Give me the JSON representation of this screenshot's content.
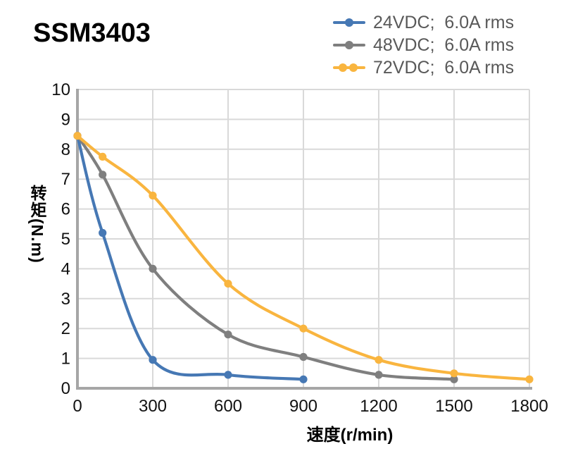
{
  "title": "SSM3403",
  "legend": {
    "items": [
      {
        "label": "24VDC;  6.0A rms",
        "color": "#4678B4",
        "dots": 1
      },
      {
        "label": "48VDC;  6.0A rms",
        "color": "#7F7F7F",
        "dots": 1
      },
      {
        "label": "72VDC;  6.0A rms",
        "color": "#F9B53F",
        "dots": 2
      }
    ]
  },
  "colors": {
    "blue_series": "#4678B4",
    "gray_series": "#7F7F7F",
    "yellow_series": "#F9B53F",
    "gridline": "#D9D9D9",
    "axis": "#A6A6A6",
    "legend_text": "#595959",
    "tick_text": "#111111",
    "title_text": "#000000"
  },
  "chart_data": {
    "type": "line",
    "title": "SSM3403",
    "xlabel": "速度(r/min)",
    "ylabel": "转矩(N.m)",
    "xlim": [
      0,
      1800
    ],
    "ylim": [
      0,
      10
    ],
    "xticks": [
      0,
      300,
      600,
      900,
      1200,
      1500,
      1800
    ],
    "yticks": [
      0,
      1,
      2,
      3,
      4,
      5,
      6,
      7,
      8,
      9,
      10
    ],
    "grid": true,
    "legend_position": "top-right",
    "series": [
      {
        "name": "24VDC;  6.0A rms",
        "color": "#4678B4",
        "points": [
          [
            0,
            8.45
          ],
          [
            100,
            5.2
          ],
          [
            300,
            0.95
          ],
          [
            600,
            0.45
          ],
          [
            900,
            0.3
          ]
        ]
      },
      {
        "name": "48VDC;  6.0A rms",
        "color": "#7F7F7F",
        "points": [
          [
            0,
            8.45
          ],
          [
            100,
            7.15
          ],
          [
            300,
            4.0
          ],
          [
            600,
            1.8
          ],
          [
            900,
            1.05
          ],
          [
            1200,
            0.45
          ],
          [
            1500,
            0.3
          ]
        ]
      },
      {
        "name": "72VDC;  6.0A rms",
        "color": "#F9B53F",
        "points": [
          [
            0,
            8.45
          ],
          [
            100,
            7.75
          ],
          [
            300,
            6.45
          ],
          [
            600,
            3.5
          ],
          [
            900,
            2.0
          ],
          [
            1200,
            0.95
          ],
          [
            1500,
            0.5
          ],
          [
            1800,
            0.3
          ]
        ]
      }
    ]
  }
}
